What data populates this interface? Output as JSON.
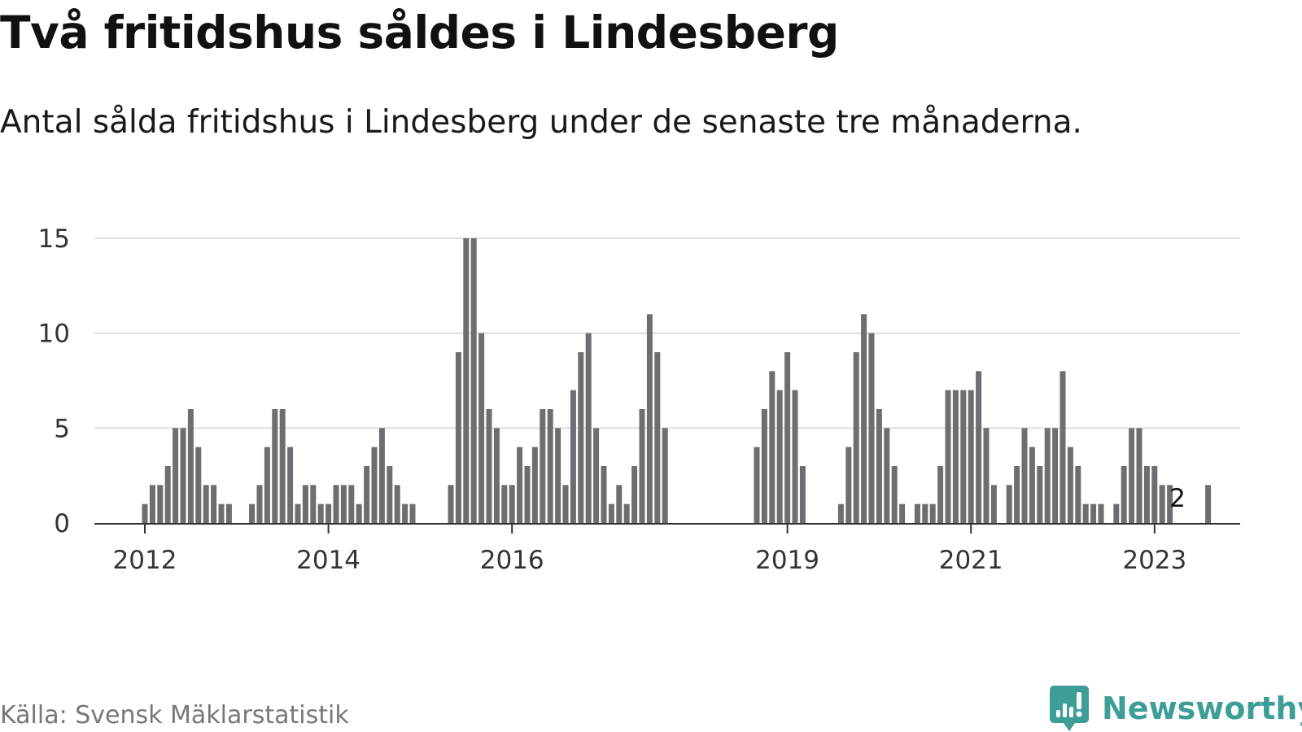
{
  "title": "Två fritidshus såldes i Lindesberg",
  "subtitle": "Antal sålda fritidshus i Lindesberg under de senaste tre månaderna.",
  "source": "Källa: Svensk Mäklarstatistik",
  "brand": {
    "name": "Newsworthy",
    "color": "#3d9e97"
  },
  "colors": {
    "bar": "#6e6d72",
    "highlight": "#1a9e96",
    "grid": "#dddddd",
    "axis": "#333333"
  },
  "chart_data": {
    "type": "bar",
    "x_unit": "month index from January 2012 (0 = Jan 2012)",
    "yticks": [
      0,
      5,
      10,
      15
    ],
    "ylim": [
      0,
      15
    ],
    "grid": true,
    "xticks": [
      {
        "label": "2012",
        "month_index": 0
      },
      {
        "label": "2014",
        "month_index": 24
      },
      {
        "label": "2016",
        "month_index": 48
      },
      {
        "label": "2019",
        "month_index": 84
      },
      {
        "label": "2021",
        "month_index": 108
      },
      {
        "label": "2023",
        "month_index": 132
      }
    ],
    "values": [
      1,
      2,
      2,
      3,
      5,
      5,
      6,
      4,
      2,
      2,
      1,
      1,
      0,
      0,
      1,
      2,
      4,
      6,
      6,
      4,
      1,
      2,
      2,
      1,
      1,
      2,
      2,
      2,
      1,
      3,
      4,
      5,
      3,
      2,
      1,
      1,
      0,
      0,
      0,
      0,
      2,
      9,
      15,
      15,
      10,
      6,
      5,
      2,
      2,
      4,
      3,
      4,
      6,
      6,
      5,
      2,
      7,
      9,
      10,
      5,
      3,
      1,
      2,
      1,
      3,
      6,
      11,
      9,
      5,
      0,
      0,
      0,
      0,
      0,
      0,
      0,
      0,
      0,
      0,
      0,
      4,
      6,
      8,
      7,
      9,
      7,
      3,
      0,
      0,
      0,
      0,
      1,
      4,
      9,
      11,
      10,
      6,
      5,
      3,
      1,
      0,
      1,
      1,
      1,
      3,
      7,
      7,
      7,
      7,
      8,
      5,
      2,
      0,
      2,
      3,
      5,
      4,
      3,
      5,
      5,
      8,
      4,
      3,
      1,
      1,
      1,
      0,
      1,
      3,
      5,
      5,
      3,
      3,
      2,
      2,
      0,
      0,
      0,
      0,
      2
    ],
    "highlight_index": 135,
    "highlight_label": "2"
  }
}
